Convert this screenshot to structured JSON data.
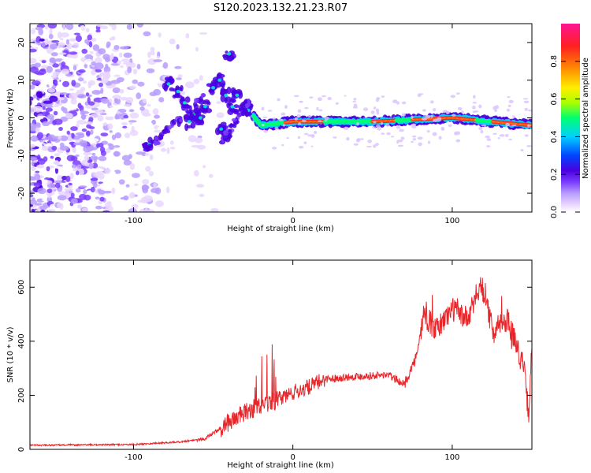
{
  "title": "S120.2023.132.21.23.R07",
  "chart_data": [
    {
      "type": "heatmap",
      "xlabel": "Height of straight line (km)",
      "ylabel": "Frequency (Hz)",
      "xlim": [
        -165,
        150
      ],
      "ylim": [
        -25,
        25
      ],
      "xticks": [
        -100,
        0,
        100
      ],
      "yticks": [
        -20,
        -10,
        0,
        10,
        20
      ],
      "colorbar": {
        "label": "Normalized spectral amplitude",
        "range": [
          0,
          1
        ],
        "ticks": [
          "0.0",
          "0.2",
          "0.4",
          "0.6",
          "0.8"
        ],
        "colormap": [
          "#ffffff",
          "#e9d6ff",
          "#b79cff",
          "#7a3cff",
          "#4b00e0",
          "#0044ff",
          "#00d0ff",
          "#00ff70",
          "#aaff00",
          "#ffee00",
          "#ff8c00",
          "#ff2020",
          "#ff1493"
        ]
      },
      "ridge": {
        "description_points": [
          {
            "x": -75,
            "y": 8
          },
          {
            "x": -60,
            "y": 2
          },
          {
            "x": -50,
            "y": 8
          },
          {
            "x": -40,
            "y": 4
          },
          {
            "x": -30,
            "y": 3
          },
          {
            "x": -20,
            "y": -2
          },
          {
            "x": 0,
            "y": -1
          },
          {
            "x": 50,
            "y": -1
          },
          {
            "x": 100,
            "y": 0
          },
          {
            "x": 150,
            "y": -2
          }
        ]
      }
    },
    {
      "type": "line",
      "xlabel": "Height of straight line (km)",
      "ylabel": "SNR (10 * v/v)",
      "xlim": [
        -165,
        150
      ],
      "ylim": [
        0,
        700
      ],
      "xticks": [
        -100,
        0,
        100
      ],
      "yticks": [
        0,
        200,
        400,
        600
      ],
      "color": "#e8262a",
      "trend": [
        {
          "x": -165,
          "y": 15
        },
        {
          "x": -100,
          "y": 18
        },
        {
          "x": -70,
          "y": 28
        },
        {
          "x": -55,
          "y": 40
        },
        {
          "x": -45,
          "y": 80
        },
        {
          "x": -38,
          "y": 110
        },
        {
          "x": -25,
          "y": 150
        },
        {
          "x": -15,
          "y": 170
        },
        {
          "x": 0,
          "y": 210
        },
        {
          "x": 10,
          "y": 230
        },
        {
          "x": 20,
          "y": 260
        },
        {
          "x": 40,
          "y": 270
        },
        {
          "x": 60,
          "y": 275
        },
        {
          "x": 70,
          "y": 240
        },
        {
          "x": 78,
          "y": 350
        },
        {
          "x": 82,
          "y": 500
        },
        {
          "x": 90,
          "y": 440
        },
        {
          "x": 100,
          "y": 520
        },
        {
          "x": 110,
          "y": 480
        },
        {
          "x": 118,
          "y": 620
        },
        {
          "x": 125,
          "y": 450
        },
        {
          "x": 135,
          "y": 480
        },
        {
          "x": 145,
          "y": 300
        },
        {
          "x": 148,
          "y": 130
        },
        {
          "x": 150,
          "y": 380
        }
      ]
    }
  ]
}
